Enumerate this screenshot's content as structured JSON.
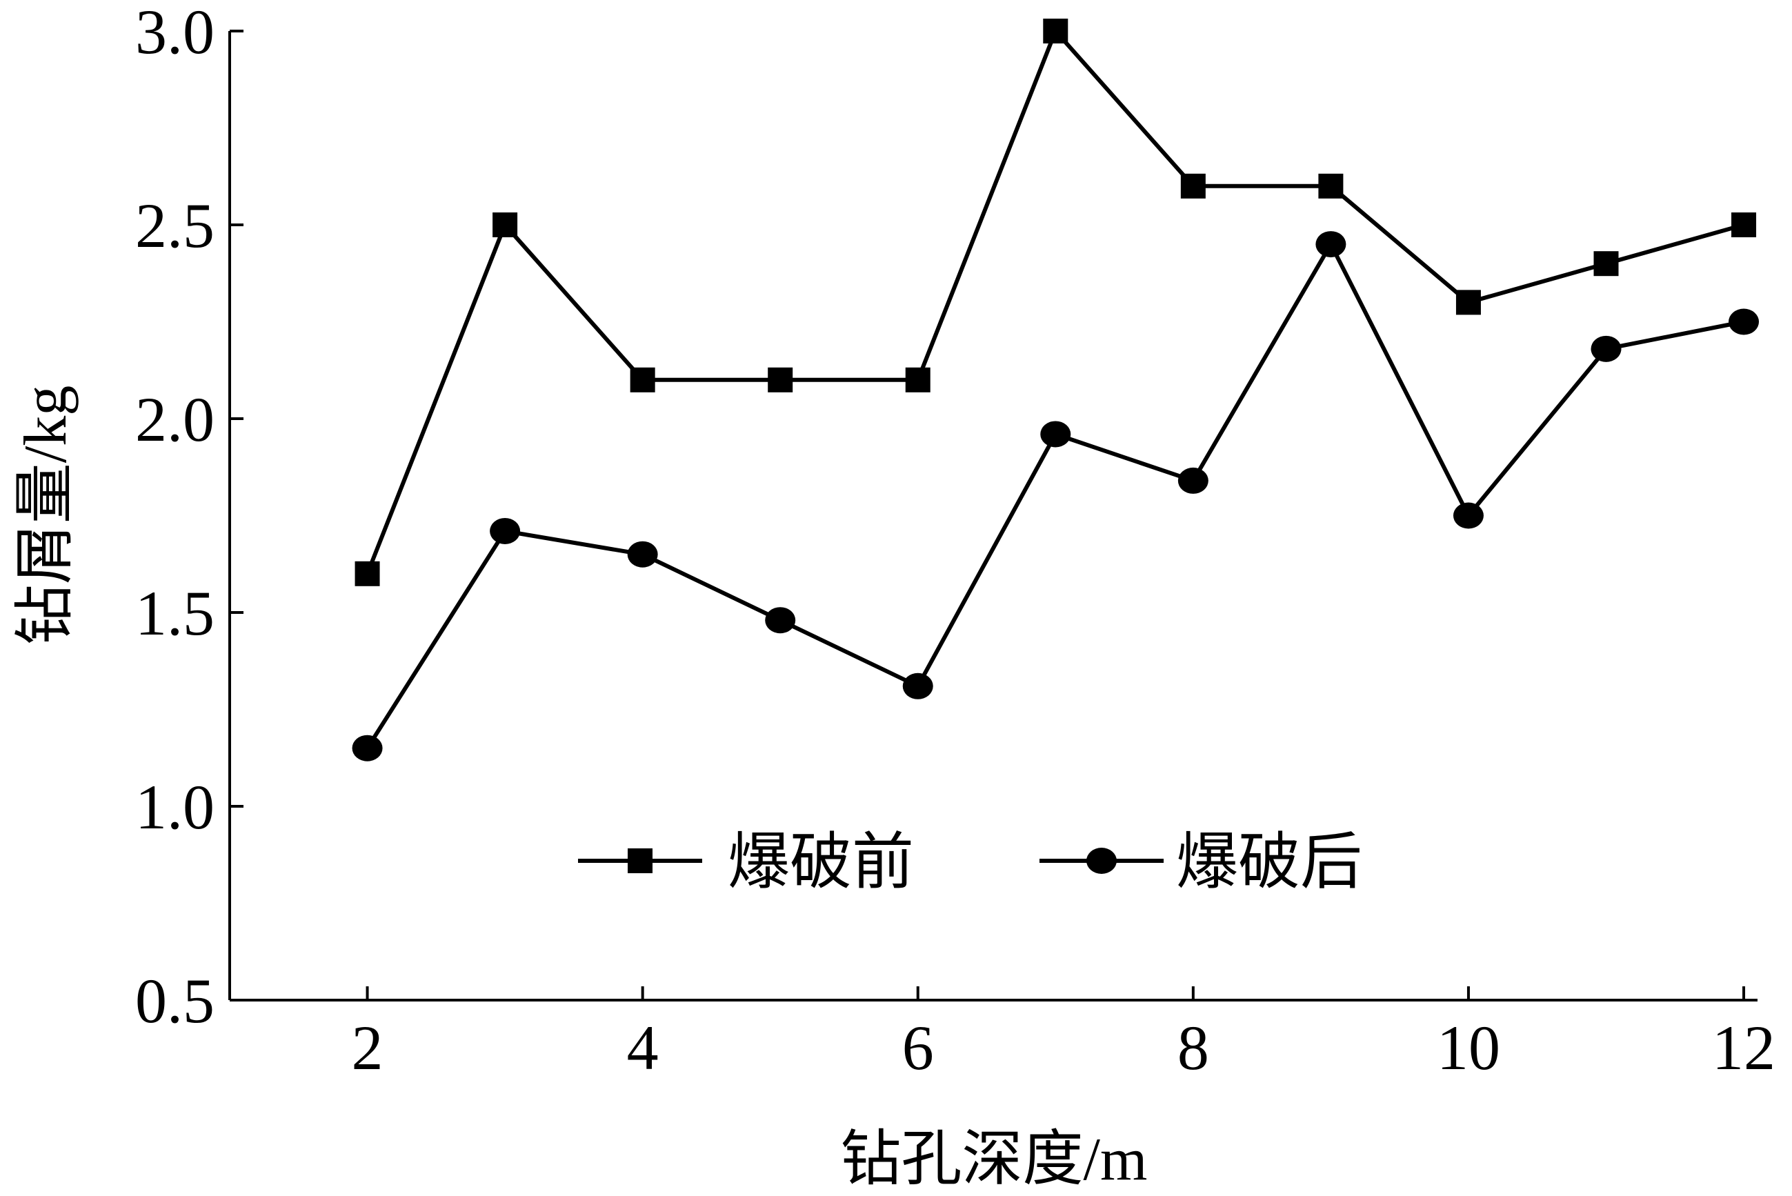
{
  "chart_data": {
    "type": "line",
    "title": "",
    "xlabel": "钻孔深度/m",
    "ylabel": "钻屑量/kg",
    "xlim": [
      1,
      12.1
    ],
    "ylim": [
      0.5,
      3.0
    ],
    "xticks": [
      2,
      4,
      6,
      8,
      10,
      12
    ],
    "yticks": [
      0.5,
      1.0,
      1.5,
      2.0,
      2.5,
      3.0
    ],
    "xtick_labels": [
      "2",
      "4",
      "6",
      "8",
      "10",
      "12"
    ],
    "ytick_labels": [
      "0.5",
      "1.0",
      "1.5",
      "2.0",
      "2.5",
      "3.0"
    ],
    "grid": false,
    "legend_position": "bottom-center",
    "series": [
      {
        "name": "爆破前",
        "marker": "square",
        "color": "#000000",
        "x": [
          2,
          3,
          4,
          5,
          6,
          7,
          8,
          9,
          10,
          11,
          12
        ],
        "y": [
          1.6,
          2.5,
          2.1,
          2.1,
          2.1,
          3.0,
          2.6,
          2.6,
          2.3,
          2.4,
          2.5
        ]
      },
      {
        "name": "爆破后",
        "marker": "circle",
        "color": "#000000",
        "x": [
          2,
          3,
          4,
          5,
          6,
          7,
          8,
          9,
          10,
          11,
          12
        ],
        "y": [
          1.15,
          1.71,
          1.65,
          1.48,
          1.31,
          1.96,
          1.84,
          2.45,
          1.75,
          2.18,
          2.25
        ]
      }
    ]
  }
}
